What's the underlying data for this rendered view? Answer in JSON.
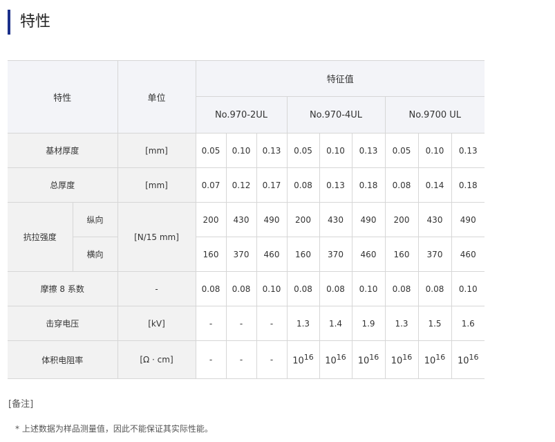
{
  "title": "特性",
  "header": {
    "characteristic": "特性",
    "unit": "单位",
    "values": "特征值",
    "products": [
      "No.970-2UL",
      "No.970-4UL",
      "No.9700 UL"
    ]
  },
  "rows": [
    {
      "label": "基材厚度",
      "unit": "[mm]",
      "values": [
        "0.05",
        "0.10",
        "0.13",
        "0.05",
        "0.10",
        "0.13",
        "0.05",
        "0.10",
        "0.13"
      ]
    },
    {
      "label": "总厚度",
      "unit": "[mm]",
      "values": [
        "0.07",
        "0.12",
        "0.17",
        "0.08",
        "0.13",
        "0.18",
        "0.08",
        "0.14",
        "0.18"
      ]
    },
    {
      "label": "抗拉强度",
      "sub": "纵向",
      "unit": "[N/15 mm]",
      "values": [
        "200",
        "430",
        "490",
        "200",
        "430",
        "490",
        "200",
        "430",
        "490"
      ]
    },
    {
      "sub": "横向",
      "values": [
        "160",
        "370",
        "460",
        "160",
        "370",
        "460",
        "160",
        "370",
        "460"
      ]
    },
    {
      "label": "摩擦 8 系数",
      "unit": "-",
      "values": [
        "0.08",
        "0.08",
        "0.10",
        "0.08",
        "0.08",
        "0.10",
        "0.08",
        "0.08",
        "0.10"
      ]
    },
    {
      "label": "击穿电压",
      "unit": "[kV]",
      "values": [
        "-",
        "-",
        "-",
        "1.3",
        "1.4",
        "1.9",
        "1.3",
        "1.5",
        "1.6"
      ]
    },
    {
      "label": "体积电阻率",
      "unit": "[Ω · cm]",
      "values": [
        "-",
        "-",
        "-",
        "10",
        "10",
        "10",
        "10",
        "10",
        "10"
      ],
      "exponent": "16"
    }
  ],
  "note_label": "[备注]",
  "footnote": "* 上述数据为样品测量值，因此不能保证其实际性能。"
}
